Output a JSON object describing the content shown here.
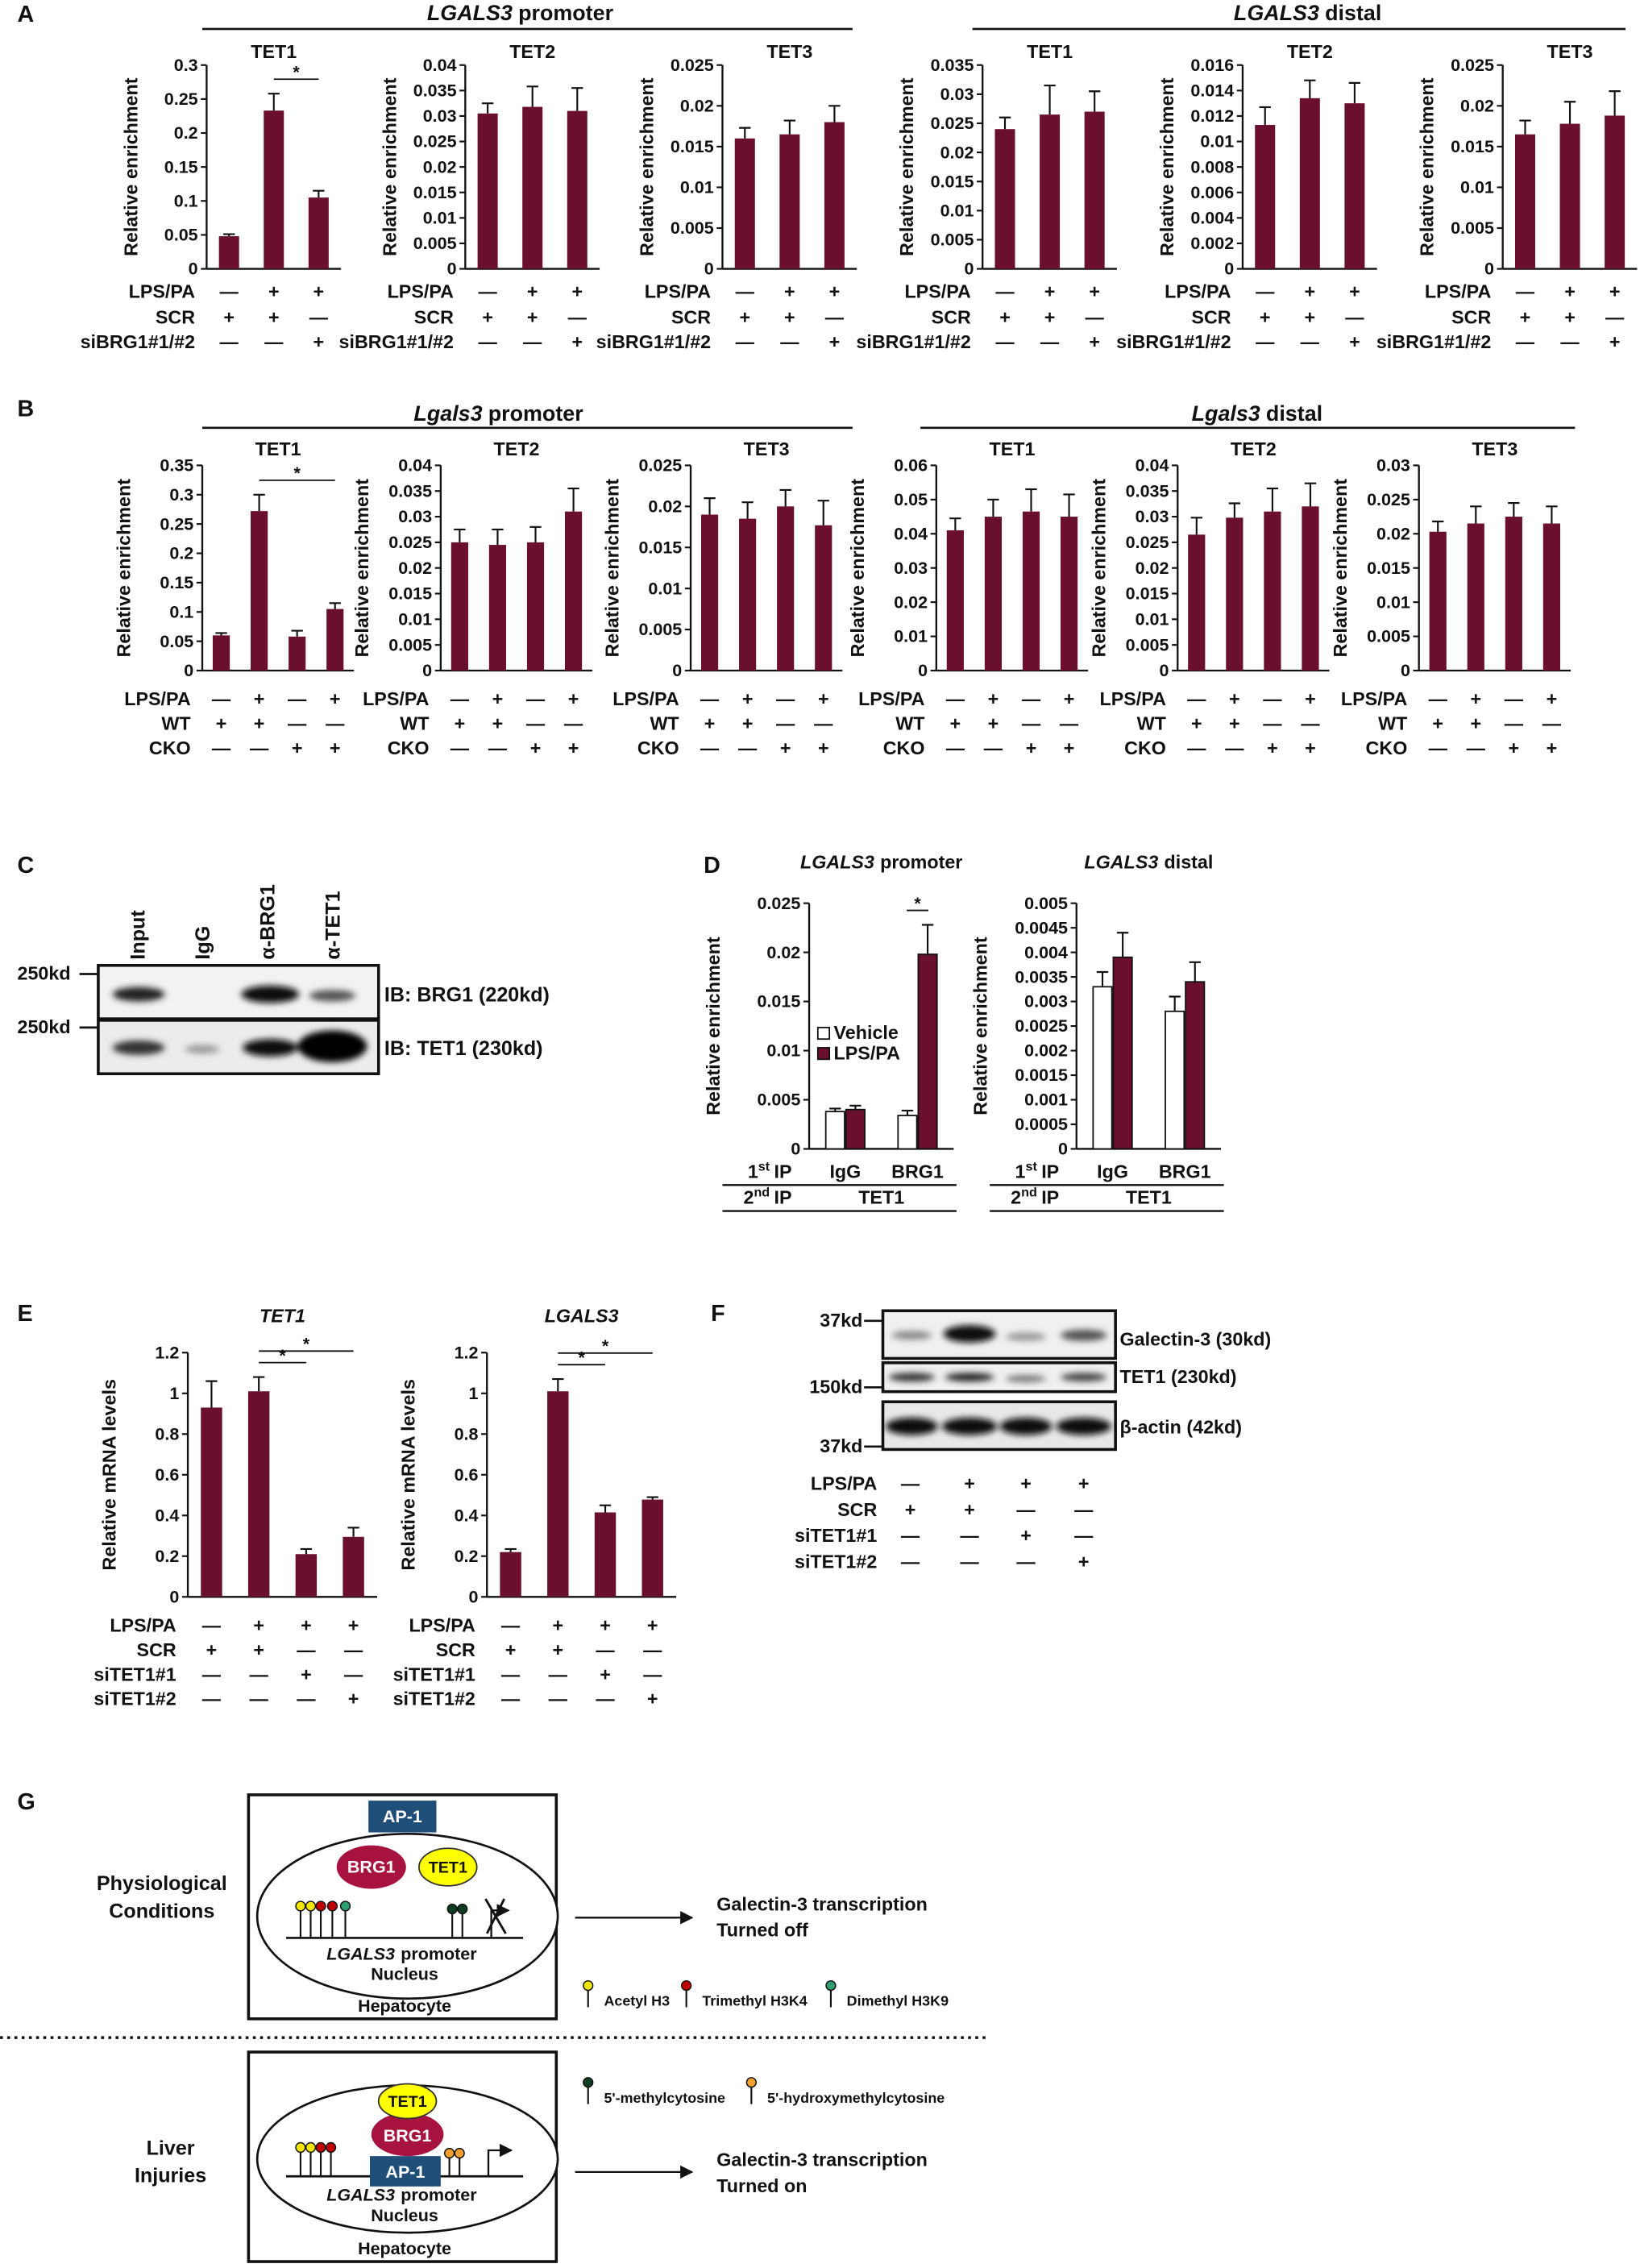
{
  "figure": {
    "panel_labels": [
      "A",
      "B",
      "C",
      "D",
      "E",
      "F",
      "G"
    ],
    "headers": [
      {
        "gene": "LGALS3",
        "region": "promoter"
      },
      {
        "gene": "LGALS3",
        "region": "distal"
      },
      {
        "gene": "Lgals3",
        "region": "promoter"
      },
      {
        "gene": "Lgals3",
        "region": "distal"
      }
    ]
  },
  "chart_data": [
    {
      "type": "bar",
      "title": "TET1",
      "ylabel": "Relative enrichment",
      "color": "#6b0f2f",
      "ylim": [
        0,
        0.3
      ],
      "yticks": [
        0,
        0.05,
        0.1,
        0.15,
        0.2,
        0.25,
        0.3
      ],
      "values": [
        0.048,
        0.233,
        0.105
      ],
      "errors": [
        0.003,
        0.025,
        0.01
      ],
      "conditions": [
        {
          "name": "LPS/PA",
          "signs": [
            "—",
            "+",
            "+"
          ]
        },
        {
          "name": "SCR",
          "signs": [
            "+",
            "+",
            "—"
          ]
        },
        {
          "name": "siBRG1#1/#2",
          "signs": [
            "—",
            "—",
            "+"
          ]
        }
      ],
      "brackets": [
        {
          "label": "*",
          "bars": [
            1,
            2
          ]
        }
      ]
    },
    {
      "type": "bar",
      "title": "TET2",
      "ylabel": "Relative enrichment",
      "color": "#6b0f2f",
      "ylim": [
        0,
        0.04
      ],
      "yticks": [
        0,
        0.005,
        0.01,
        0.015,
        0.02,
        0.025,
        0.03,
        0.035,
        0.04
      ],
      "values": [
        0.0305,
        0.0318,
        0.031
      ],
      "errors": [
        0.002,
        0.004,
        0.0045
      ],
      "conditions": [
        {
          "name": "LPS/PA",
          "signs": [
            "—",
            "+",
            "+"
          ]
        },
        {
          "name": "SCR",
          "signs": [
            "+",
            "+",
            "—"
          ]
        },
        {
          "name": "siBRG1#1/#2",
          "signs": [
            "—",
            "—",
            "+"
          ]
        }
      ]
    },
    {
      "type": "bar",
      "title": "TET3",
      "ylabel": "Relative enrichment",
      "color": "#6b0f2f",
      "ylim": [
        0,
        0.025
      ],
      "yticks": [
        0,
        0.005,
        0.01,
        0.015,
        0.02,
        0.025
      ],
      "values": [
        0.016,
        0.0165,
        0.018
      ],
      "errors": [
        0.0013,
        0.0017,
        0.002
      ],
      "conditions": [
        {
          "name": "LPS/PA",
          "signs": [
            "—",
            "+",
            "+"
          ]
        },
        {
          "name": "SCR",
          "signs": [
            "+",
            "+",
            "—"
          ]
        },
        {
          "name": "siBRG1#1/#2",
          "signs": [
            "—",
            "—",
            "+"
          ]
        }
      ]
    },
    {
      "type": "bar",
      "title": "TET1",
      "ylabel": "Relative enrichment",
      "color": "#6b0f2f",
      "ylim": [
        0,
        0.035
      ],
      "yticks": [
        0,
        0.005,
        0.01,
        0.015,
        0.02,
        0.025,
        0.03,
        0.035
      ],
      "values": [
        0.024,
        0.0265,
        0.027
      ],
      "errors": [
        0.002,
        0.005,
        0.0035
      ],
      "conditions": [
        {
          "name": "LPS/PA",
          "signs": [
            "—",
            "+",
            "+"
          ]
        },
        {
          "name": "SCR",
          "signs": [
            "+",
            "+",
            "—"
          ]
        },
        {
          "name": "siBRG1#1/#2",
          "signs": [
            "—",
            "—",
            "+"
          ]
        }
      ]
    },
    {
      "type": "bar",
      "title": "TET2",
      "ylabel": "Relative enrichment",
      "color": "#6b0f2f",
      "ylim": [
        0,
        0.016
      ],
      "yticks": [
        0,
        0.002,
        0.004,
        0.006,
        0.008,
        0.01,
        0.012,
        0.014,
        0.016
      ],
      "values": [
        0.0113,
        0.0134,
        0.013
      ],
      "errors": [
        0.0014,
        0.0014,
        0.0016
      ],
      "conditions": [
        {
          "name": "LPS/PA",
          "signs": [
            "—",
            "+",
            "+"
          ]
        },
        {
          "name": "SCR",
          "signs": [
            "+",
            "+",
            "—"
          ]
        },
        {
          "name": "siBRG1#1/#2",
          "signs": [
            "—",
            "—",
            "+"
          ]
        }
      ]
    },
    {
      "type": "bar",
      "title": "TET3",
      "ylabel": "Relative enrichment",
      "color": "#6b0f2f",
      "ylim": [
        0,
        0.025
      ],
      "yticks": [
        0,
        0.005,
        0.01,
        0.015,
        0.02,
        0.025
      ],
      "values": [
        0.0165,
        0.0178,
        0.0188
      ],
      "errors": [
        0.0017,
        0.0027,
        0.003
      ],
      "conditions": [
        {
          "name": "LPS/PA",
          "signs": [
            "—",
            "+",
            "+"
          ]
        },
        {
          "name": "SCR",
          "signs": [
            "+",
            "+",
            "—"
          ]
        },
        {
          "name": "siBRG1#1/#2",
          "signs": [
            "—",
            "—",
            "+"
          ]
        }
      ]
    },
    {
      "type": "bar",
      "title": "TET1",
      "ylabel": "Relative enrichment",
      "color": "#6b0f2f",
      "ylim": [
        0,
        0.35
      ],
      "yticks": [
        0,
        0.05,
        0.1,
        0.15,
        0.2,
        0.25,
        0.3,
        0.35
      ],
      "values": [
        0.06,
        0.272,
        0.058,
        0.105
      ],
      "errors": [
        0.004,
        0.028,
        0.01,
        0.01
      ],
      "conditions": [
        {
          "name": "LPS/PA",
          "signs": [
            "—",
            "+",
            "—",
            "+"
          ]
        },
        {
          "name": "WT",
          "signs": [
            "+",
            "+",
            "—",
            "—"
          ]
        },
        {
          "name": "CKO",
          "signs": [
            "—",
            "—",
            "+",
            "+"
          ]
        }
      ],
      "brackets": [
        {
          "label": "*",
          "bars": [
            1,
            3
          ]
        }
      ]
    },
    {
      "type": "bar",
      "title": "TET2",
      "ylabel": "Relative enrichment",
      "color": "#6b0f2f",
      "ylim": [
        0,
        0.04
      ],
      "yticks": [
        0,
        0.005,
        0.01,
        0.015,
        0.02,
        0.025,
        0.03,
        0.035,
        0.04
      ],
      "values": [
        0.025,
        0.0245,
        0.025,
        0.031
      ],
      "errors": [
        0.0025,
        0.003,
        0.003,
        0.0045
      ],
      "conditions": [
        {
          "name": "LPS/PA",
          "signs": [
            "—",
            "+",
            "—",
            "+"
          ]
        },
        {
          "name": "WT",
          "signs": [
            "+",
            "+",
            "—",
            "—"
          ]
        },
        {
          "name": "CKO",
          "signs": [
            "—",
            "—",
            "+",
            "+"
          ]
        }
      ]
    },
    {
      "type": "bar",
      "title": "TET3",
      "ylabel": "Relative enrichment",
      "color": "#6b0f2f",
      "ylim": [
        0,
        0.025
      ],
      "yticks": [
        0,
        0.005,
        0.01,
        0.015,
        0.02,
        0.025
      ],
      "values": [
        0.019,
        0.0185,
        0.02,
        0.0177
      ],
      "errors": [
        0.002,
        0.002,
        0.002,
        0.003
      ],
      "conditions": [
        {
          "name": "LPS/PA",
          "signs": [
            "—",
            "+",
            "—",
            "+"
          ]
        },
        {
          "name": "WT",
          "signs": [
            "+",
            "+",
            "—",
            "—"
          ]
        },
        {
          "name": "CKO",
          "signs": [
            "—",
            "—",
            "+",
            "+"
          ]
        }
      ]
    },
    {
      "type": "bar",
      "title": "TET1",
      "ylabel": "Relative enrichment",
      "color": "#6b0f2f",
      "ylim": [
        0,
        0.06
      ],
      "yticks": [
        0,
        0.01,
        0.02,
        0.03,
        0.04,
        0.05,
        0.06
      ],
      "values": [
        0.041,
        0.045,
        0.0465,
        0.045
      ],
      "errors": [
        0.0035,
        0.005,
        0.0065,
        0.0065
      ],
      "conditions": [
        {
          "name": "LPS/PA",
          "signs": [
            "—",
            "+",
            "—",
            "+"
          ]
        },
        {
          "name": "WT",
          "signs": [
            "+",
            "+",
            "—",
            "—"
          ]
        },
        {
          "name": "CKO",
          "signs": [
            "—",
            "—",
            "+",
            "+"
          ]
        }
      ]
    },
    {
      "type": "bar",
      "title": "TET2",
      "ylabel": "Relative enrichment",
      "color": "#6b0f2f",
      "ylim": [
        0,
        0.04
      ],
      "yticks": [
        0,
        0.005,
        0.01,
        0.015,
        0.02,
        0.025,
        0.03,
        0.035,
        0.04
      ],
      "values": [
        0.0265,
        0.0298,
        0.031,
        0.032
      ],
      "errors": [
        0.0033,
        0.0028,
        0.0045,
        0.0045
      ],
      "conditions": [
        {
          "name": "LPS/PA",
          "signs": [
            "—",
            "+",
            "—",
            "+"
          ]
        },
        {
          "name": "WT",
          "signs": [
            "+",
            "+",
            "—",
            "—"
          ]
        },
        {
          "name": "CKO",
          "signs": [
            "—",
            "—",
            "+",
            "+"
          ]
        }
      ]
    },
    {
      "type": "bar",
      "title": "TET3",
      "ylabel": "Relative enrichment",
      "color": "#6b0f2f",
      "ylim": [
        0,
        0.03
      ],
      "yticks": [
        0,
        0.005,
        0.01,
        0.015,
        0.02,
        0.025,
        0.03
      ],
      "values": [
        0.0203,
        0.0215,
        0.0225,
        0.0215
      ],
      "errors": [
        0.0015,
        0.0025,
        0.002,
        0.0025
      ],
      "conditions": [
        {
          "name": "LPS/PA",
          "signs": [
            "—",
            "+",
            "—",
            "+"
          ]
        },
        {
          "name": "WT",
          "signs": [
            "+",
            "+",
            "—",
            "—"
          ]
        },
        {
          "name": "CKO",
          "signs": [
            "—",
            "—",
            "+",
            "+"
          ]
        }
      ]
    },
    {
      "type": "grouped_bar",
      "title": {
        "gene": "LGALS3",
        "region": "promoter"
      },
      "ylabel": "Relative enrichment",
      "ylim": [
        0,
        0.025
      ],
      "yticks": [
        0,
        0.005,
        0.01,
        0.015,
        0.02,
        0.025
      ],
      "categories": [
        "IgG",
        "BRG1"
      ],
      "series": [
        {
          "name": "Vehicle",
          "color": "#ffffff",
          "values": [
            0.0038,
            0.0034
          ],
          "errors": [
            0.0003,
            0.0005
          ]
        },
        {
          "name": "LPS/PA",
          "color": "#6b0f2f",
          "values": [
            0.004,
            0.0198
          ],
          "errors": [
            0.0004,
            0.003
          ]
        }
      ],
      "ip_rows": {
        "first": {
          "num": "1",
          "sup": "st",
          "text": "IP"
        },
        "second": {
          "num": "2",
          "sup": "nd",
          "text": "IP"
        },
        "second_target": "TET1"
      },
      "brackets": [
        {
          "label": "*",
          "category": 1
        }
      ]
    },
    {
      "type": "grouped_bar",
      "title": {
        "gene": "LGALS3",
        "region": "distal"
      },
      "ylabel": "Relative enrichment",
      "ylim": [
        0,
        0.005
      ],
      "yticks": [
        0,
        0.0005,
        0.001,
        0.0015,
        0.002,
        0.0025,
        0.003,
        0.0035,
        0.004,
        0.0045,
        0.005
      ],
      "categories": [
        "IgG",
        "BRG1"
      ],
      "series": [
        {
          "name": "Vehicle",
          "color": "#ffffff",
          "values": [
            0.0033,
            0.0028
          ],
          "errors": [
            0.0003,
            0.0003
          ]
        },
        {
          "name": "LPS/PA",
          "color": "#6b0f2f",
          "values": [
            0.0039,
            0.0034
          ],
          "errors": [
            0.0005,
            0.0004
          ]
        }
      ],
      "ip_rows": {
        "first": {
          "num": "1",
          "sup": "st",
          "text": "IP"
        },
        "second": {
          "num": "2",
          "sup": "nd",
          "text": "IP"
        },
        "second_target": "TET1"
      }
    },
    {
      "type": "bar",
      "title": "TET1",
      "title_italic": true,
      "ylabel": "Relative mRNA levels",
      "color": "#6b0f2f",
      "ylim": [
        0,
        1.2
      ],
      "yticks": [
        0,
        0.2,
        0.4,
        0.6,
        0.8,
        1,
        1.2
      ],
      "values": [
        0.93,
        1.01,
        0.21,
        0.295
      ],
      "errors": [
        0.13,
        0.07,
        0.025,
        0.045
      ],
      "conditions": [
        {
          "name": "LPS/PA",
          "signs": [
            "—",
            "+",
            "+",
            "+"
          ]
        },
        {
          "name": "SCR",
          "signs": [
            "+",
            "+",
            "—",
            "—"
          ]
        },
        {
          "name": "siTET1#1",
          "signs": [
            "—",
            "—",
            "+",
            "—"
          ]
        },
        {
          "name": "siTET1#2",
          "signs": [
            "—",
            "—",
            "—",
            "+"
          ]
        }
      ],
      "brackets": [
        {
          "label": "*",
          "bars": [
            1,
            2
          ]
        },
        {
          "label": "*",
          "bars": [
            1,
            3
          ]
        }
      ]
    },
    {
      "type": "bar",
      "title": "LGALS3",
      "title_italic": true,
      "ylabel": "Relative mRNA levels",
      "color": "#6b0f2f",
      "ylim": [
        0,
        1.2
      ],
      "yticks": [
        0,
        0.2,
        0.4,
        0.6,
        0.8,
        1,
        1.2
      ],
      "values": [
        0.22,
        1.01,
        0.415,
        0.478
      ],
      "errors": [
        0.015,
        0.06,
        0.035,
        0.012
      ],
      "conditions": [
        {
          "name": "LPS/PA",
          "signs": [
            "—",
            "+",
            "+",
            "+"
          ]
        },
        {
          "name": "SCR",
          "signs": [
            "+",
            "+",
            "—",
            "—"
          ]
        },
        {
          "name": "siTET1#1",
          "signs": [
            "—",
            "—",
            "+",
            "—"
          ]
        },
        {
          "name": "siTET1#2",
          "signs": [
            "—",
            "—",
            "—",
            "+"
          ]
        }
      ],
      "brackets": [
        {
          "label": "*",
          "bars": [
            1,
            2
          ]
        },
        {
          "label": "*",
          "bars": [
            1,
            3
          ]
        }
      ]
    }
  ],
  "blot_c": {
    "lanes": [
      "Input",
      "IgG",
      "α-BRG1",
      "α-TET1"
    ],
    "markers": [
      "250kd",
      "250kd"
    ],
    "blots": [
      "IB: BRG1 (220kd)",
      "IB: TET1 (230kd)"
    ]
  },
  "blot_f": {
    "markers": [
      "37kd",
      "150kd",
      "37kd"
    ],
    "blots": [
      "Galectin-3 (30kd)",
      "TET1 (230kd)",
      "β-actin (42kd)"
    ],
    "conditions": [
      {
        "name": "LPS/PA",
        "signs": [
          "—",
          "+",
          "+",
          "+"
        ]
      },
      {
        "name": "SCR",
        "signs": [
          "+",
          "+",
          "—",
          "—"
        ]
      },
      {
        "name": "siTET1#1",
        "signs": [
          "—",
          "—",
          "+",
          "—"
        ]
      },
      {
        "name": "siTET1#2",
        "signs": [
          "—",
          "—",
          "—",
          "+"
        ]
      }
    ]
  },
  "diagram": {
    "top": {
      "label": [
        "Physiological",
        "Conditions"
      ],
      "ap1": "AP-1",
      "brg1": "BRG1",
      "tet1": "TET1",
      "promoter": {
        "gene": "LGALS3",
        "region": "promoter"
      },
      "nucleus": "Nucleus",
      "cell": "Hepatocyte",
      "outcome": [
        "Galectin-3 transcription",
        "Turned off"
      ]
    },
    "bottom": {
      "label": [
        "Liver",
        "Injuries"
      ],
      "ap1": "AP-1",
      "brg1": "BRG1",
      "tet1": "TET1",
      "promoter": {
        "gene": "LGALS3",
        "region": "promoter"
      },
      "nucleus": "Nucleus",
      "cell": "Hepatocyte",
      "outcome": [
        "Galectin-3 transcription",
        "Turned on"
      ]
    },
    "legend": [
      {
        "label": "Acetyl H3",
        "color": "#f2e600"
      },
      {
        "label": "Trimethyl H3K4",
        "color": "#c00000"
      },
      {
        "label": "Dimethyl H3K9",
        "color": "#2e9e6e"
      },
      {
        "label": "5'-methylcytosine",
        "color": "#0e3d24"
      },
      {
        "label": "5'-hydroxymethylcytosine",
        "color": "#f0a030"
      }
    ]
  }
}
